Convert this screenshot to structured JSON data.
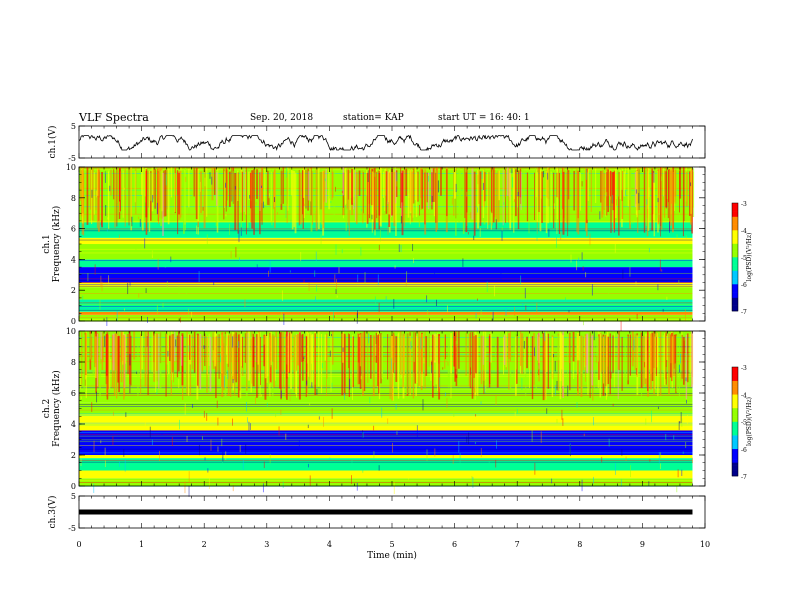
{
  "header": {
    "title": "VLF Spectra",
    "date": "Sep. 20, 2018",
    "station": "station= KAP",
    "start_time": "start  UT  =   16: 40: 1"
  },
  "colors": {
    "colormap": [
      "#00008b",
      "#0000ff",
      "#00c8ff",
      "#00ff96",
      "#96ff00",
      "#ffff00",
      "#ff8c00",
      "#ff0000",
      "#ff96b4",
      "#ffffff"
    ],
    "trace": "#000000"
  },
  "chart_data": [
    {
      "type": "line",
      "id": "ch1-waveform",
      "ylabel": "ch.1(V)",
      "xlim": [
        0,
        10
      ],
      "ylim": [
        -5,
        5
      ],
      "yticks": [
        "5",
        "-5"
      ],
      "approx_amplitude_range": [
        -2.5,
        2.0
      ],
      "x_extent": [
        0,
        9.8
      ]
    },
    {
      "type": "heatmap",
      "id": "ch1-spectrogram",
      "ylabel": "ch.1\nFrequency  (kHz)",
      "xlim": [
        0,
        10
      ],
      "ylim": [
        0,
        10
      ],
      "yticks": [
        "0",
        "2",
        "4",
        "6",
        "8",
        "10"
      ],
      "x_extent": [
        0,
        9.8
      ],
      "bands": [
        {
          "from": 0.0,
          "to": 0.4,
          "level": -4.6
        },
        {
          "from": 0.4,
          "to": 0.6,
          "level": -3.6
        },
        {
          "from": 0.6,
          "to": 1.4,
          "level": -5.4
        },
        {
          "from": 1.4,
          "to": 2.2,
          "level": -5.0
        },
        {
          "from": 2.2,
          "to": 2.5,
          "level": -4.3
        },
        {
          "from": 2.5,
          "to": 3.5,
          "level": -6.3
        },
        {
          "from": 3.5,
          "to": 4.0,
          "level": -5.3
        },
        {
          "from": 4.0,
          "to": 5.0,
          "level": -4.9
        },
        {
          "from": 5.0,
          "to": 5.4,
          "level": -4.2
        },
        {
          "from": 5.4,
          "to": 6.4,
          "level": -5.3
        },
        {
          "from": 6.4,
          "to": 10.0,
          "level": -4.7
        }
      ],
      "colorbar": {
        "label": "log(PSD)(V²/Hz)",
        "range": [
          -7,
          -3
        ],
        "ticks": [
          "-3",
          "-4",
          "-5",
          "-6",
          "-7"
        ]
      }
    },
    {
      "type": "heatmap",
      "id": "ch2-spectrogram",
      "ylabel": "ch.2\nFrequency  (kHz)",
      "xlim": [
        0,
        10
      ],
      "ylim": [
        0,
        10
      ],
      "yticks": [
        "0",
        "2",
        "4",
        "6",
        "8",
        "10"
      ],
      "x_extent": [
        0,
        9.8
      ],
      "bands": [
        {
          "from": 0.0,
          "to": 0.5,
          "level": -4.6
        },
        {
          "from": 0.5,
          "to": 1.0,
          "level": -4.3
        },
        {
          "from": 1.0,
          "to": 1.8,
          "level": -5.4
        },
        {
          "from": 1.8,
          "to": 2.0,
          "level": -4.2
        },
        {
          "from": 2.0,
          "to": 3.6,
          "level": -6.3
        },
        {
          "from": 3.6,
          "to": 4.6,
          "level": -4.3
        },
        {
          "from": 4.6,
          "to": 5.4,
          "level": -4.9
        },
        {
          "from": 5.4,
          "to": 6.2,
          "level": -4.6
        },
        {
          "from": 6.2,
          "to": 10.0,
          "level": -4.8
        }
      ],
      "colorbar": {
        "label": "log(PSD)(V²/Hz)",
        "range": [
          -7,
          -3
        ],
        "ticks": [
          "-3",
          "-4",
          "-5",
          "-6",
          "-7"
        ]
      }
    },
    {
      "type": "line",
      "id": "ch3-waveform",
      "ylabel": "ch.3(V)",
      "xlim": [
        0,
        10
      ],
      "ylim": [
        -5,
        5
      ],
      "yticks": [
        "5",
        "-5"
      ],
      "constant_value": 0.0,
      "x_extent": [
        0,
        9.8
      ],
      "xlabel": "Time  (min)",
      "xticks": [
        "0",
        "1",
        "2",
        "3",
        "4",
        "5",
        "6",
        "7",
        "8",
        "9",
        "10"
      ]
    }
  ]
}
